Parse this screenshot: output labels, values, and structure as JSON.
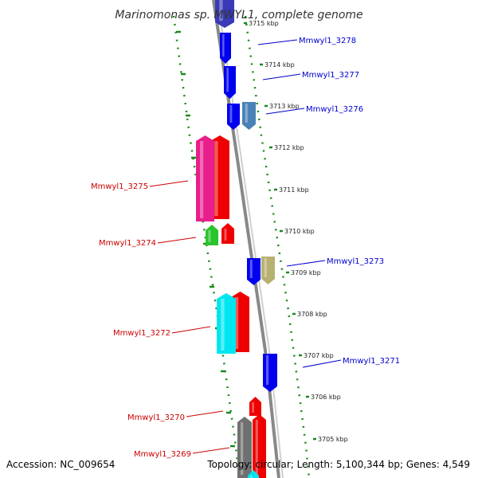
{
  "title": "Marinomonas sp. MWYL1, complete genome",
  "footer": {
    "accession": "Accession: NC_009654",
    "stats": "Topology: circular; Length: 5,100,344 bp; Genes: 4,549"
  },
  "colors": {
    "backbone": "#808080",
    "tick": "#1a8a1a",
    "label_forward": "#0000cc",
    "label_reverse": "#cc0000"
  },
  "ticks": [
    {
      "label": "3715 kbp"
    },
    {
      "label": "3714 kbp"
    },
    {
      "label": "3713 kbp"
    },
    {
      "label": "3712 kbp"
    },
    {
      "label": "3711 kbp"
    },
    {
      "label": "3710 kbp"
    },
    {
      "label": "3709 kbp"
    },
    {
      "label": "3708 kbp"
    },
    {
      "label": "3707 kbp"
    },
    {
      "label": "3706 kbp"
    },
    {
      "label": "3705 kbp"
    }
  ],
  "genes": [
    {
      "label": "Mmwyl1_3278",
      "strand": "forward",
      "color": "#0000ee"
    },
    {
      "label": "Mmwyl1_3277",
      "strand": "forward",
      "color": "#0000ee"
    },
    {
      "label": "Mmwyl1_3276",
      "strand": "forward",
      "color": "#4a82b8"
    },
    {
      "label": "Mmwyl1_3275",
      "strand": "reverse",
      "color": "#e81e8c"
    },
    {
      "label": "Mmwyl1_3274",
      "strand": "reverse",
      "color": "#2cc42c"
    },
    {
      "label": "Mmwyl1_3273",
      "strand": "forward",
      "color": "#b8b070"
    },
    {
      "label": "Mmwyl1_3272",
      "strand": "reverse",
      "color": "#00e6f0"
    },
    {
      "label": "Mmwyl1_3271",
      "strand": "forward",
      "color": "#0000ee"
    },
    {
      "label": "Mmwyl1_3270",
      "strand": "reverse",
      "color": "#ee0000"
    },
    {
      "label": "Mmwyl1_3269",
      "strand": "reverse",
      "color": "#707070"
    }
  ]
}
